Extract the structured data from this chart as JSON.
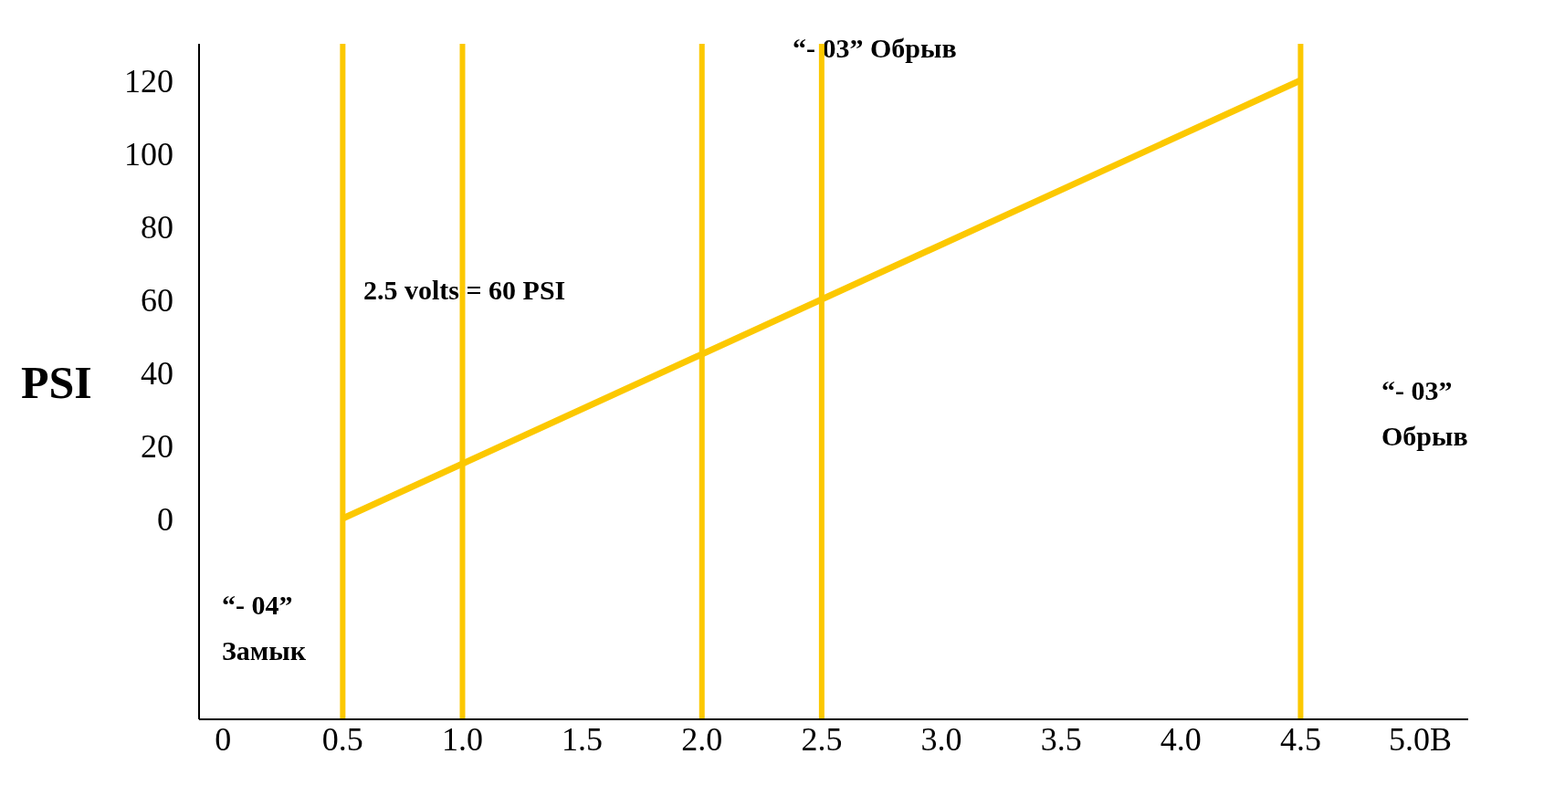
{
  "chart_data": {
    "type": "line",
    "ylabel": "PSI",
    "x": [
      0.5,
      4.5
    ],
    "series": [
      {
        "color": "#fcc800",
        "values": [
          0,
          120
        ]
      }
    ],
    "xlim": [
      -0.1,
      5.2
    ],
    "ylim": [
      -55,
      130
    ],
    "xticks": [
      0,
      0.5,
      {
        "value": 1,
        "label": "1.0"
      },
      1.5,
      {
        "value": 2,
        "label": "2.0"
      },
      2.5,
      {
        "value": 3,
        "label": "3.0"
      },
      3.5,
      {
        "value": 4,
        "label": "4.0"
      },
      4.5,
      {
        "value": 5,
        "label": "5.0B"
      }
    ],
    "yticks": [
      0,
      20,
      40,
      60,
      80,
      100,
      120
    ],
    "ref_lines": [
      {
        "axis": "x",
        "value": 0.5,
        "color": "#fcc800"
      },
      {
        "axis": "x",
        "value": 1,
        "color": "#fcc800"
      },
      {
        "axis": "x",
        "value": 2,
        "color": "#fcc800"
      },
      {
        "axis": "x",
        "value": 2.5,
        "color": "#fcc800"
      },
      {
        "axis": "x",
        "value": 4.5,
        "color": "#fcc800"
      }
    ],
    "annotations": [
      "2.5 volts = 60 PSI",
      "“- 03”  Обрыв",
      "“- 03”\nОбрыв",
      "“- 04”\nЗамык"
    ],
    "marker": "none",
    "line_style": "solid"
  }
}
